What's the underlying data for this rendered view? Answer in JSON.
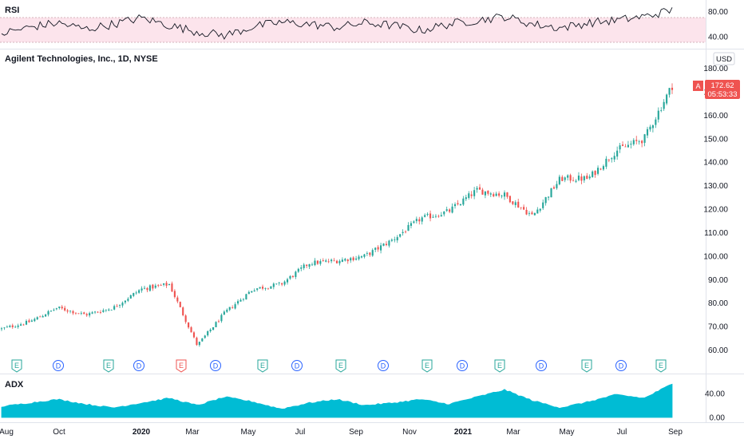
{
  "panes": {
    "rsi": {
      "label": "RSI",
      "ticks": [
        "80.00",
        "40.00"
      ]
    },
    "main": {
      "title": "Agilent Technologies, Inc., 1D, NYSE",
      "currency": "USD",
      "ticks": [
        "180.00",
        "170.00",
        "160.00",
        "150.00",
        "140.00",
        "130.00",
        "120.00",
        "110.00",
        "100.00",
        "90.00",
        "80.00",
        "70.00",
        "60.00"
      ],
      "price_badge": {
        "symbol": "A",
        "price": "172.62",
        "countdown": "05:53:33"
      }
    },
    "adx": {
      "label": "ADX",
      "ticks": [
        "40.00",
        "0.00"
      ]
    }
  },
  "x_axis_labels": [
    "Aug",
    "Oct",
    "2020",
    "Mar",
    "May",
    "Jul",
    "Sep",
    "Nov",
    "2021",
    "Mar",
    "May",
    "Jul",
    "Sep"
  ],
  "events": [
    {
      "type": "E",
      "style": "earnings"
    },
    {
      "type": "D",
      "style": "dividend"
    },
    {
      "type": "E",
      "style": "earnings"
    },
    {
      "type": "D",
      "style": "dividend"
    },
    {
      "type": "E",
      "style": "earnings-miss"
    },
    {
      "type": "D",
      "style": "dividend"
    },
    {
      "type": "E",
      "style": "earnings"
    },
    {
      "type": "D",
      "style": "dividend"
    },
    {
      "type": "E",
      "style": "earnings"
    },
    {
      "type": "D",
      "style": "dividend"
    },
    {
      "type": "E",
      "style": "earnings"
    },
    {
      "type": "D",
      "style": "dividend"
    },
    {
      "type": "E",
      "style": "earnings"
    },
    {
      "type": "D",
      "style": "dividend"
    },
    {
      "type": "E",
      "style": "earnings"
    },
    {
      "type": "D",
      "style": "dividend"
    },
    {
      "type": "E",
      "style": "earnings"
    }
  ],
  "colors": {
    "up": "#26a69a",
    "down": "#ef5350",
    "rsi_band": "#fce4ec",
    "adx_fill": "#00bcd4",
    "earnings": "#26a69a",
    "earnings_miss": "#ef5350",
    "dividend": "#2962ff"
  },
  "chart_data": [
    {
      "type": "candlestick",
      "pane": "main",
      "ylim": [
        55,
        185
      ],
      "x_range": [
        "2019-08",
        "2021-08"
      ],
      "y_scale": "linear",
      "grid": false,
      "last_price": 172.62,
      "close_path": [
        {
          "x": "2019-08",
          "y": 69
        },
        {
          "x": "2019-09",
          "y": 72
        },
        {
          "x": "2019-10",
          "y": 78
        },
        {
          "x": "2019-11",
          "y": 75
        },
        {
          "x": "2019-12",
          "y": 78
        },
        {
          "x": "2020-01",
          "y": 86
        },
        {
          "x": "2020-02",
          "y": 88
        },
        {
          "x": "2020-03",
          "y": 62
        },
        {
          "x": "2020-04",
          "y": 76
        },
        {
          "x": "2020-05",
          "y": 86
        },
        {
          "x": "2020-06",
          "y": 88
        },
        {
          "x": "2020-07",
          "y": 97
        },
        {
          "x": "2020-08",
          "y": 98
        },
        {
          "x": "2020-09",
          "y": 100
        },
        {
          "x": "2020-10",
          "y": 107
        },
        {
          "x": "2020-11",
          "y": 116
        },
        {
          "x": "2020-12",
          "y": 119
        },
        {
          "x": "2021-01",
          "y": 128
        },
        {
          "x": "2021-02",
          "y": 126
        },
        {
          "x": "2021-03",
          "y": 117
        },
        {
          "x": "2021-04",
          "y": 133
        },
        {
          "x": "2021-05",
          "y": 133
        },
        {
          "x": "2021-06",
          "y": 145
        },
        {
          "x": "2021-07",
          "y": 150
        },
        {
          "x": "2021-08",
          "y": 172.62
        }
      ]
    },
    {
      "type": "line",
      "pane": "rsi",
      "ylim": [
        30,
        95
      ],
      "band": [
        30,
        70
      ],
      "values": [
        45,
        55,
        62,
        52,
        60,
        70,
        58,
        48,
        42,
        56,
        63,
        60,
        55,
        62,
        58,
        50,
        60,
        66,
        72,
        60,
        54,
        62,
        66,
        72,
        82
      ]
    },
    {
      "type": "area",
      "pane": "adx",
      "ylim": [
        0,
        60
      ],
      "values": [
        18,
        24,
        30,
        22,
        16,
        24,
        32,
        20,
        34,
        26,
        14,
        24,
        30,
        20,
        24,
        30,
        22,
        34,
        46,
        28,
        16,
        26,
        38,
        32,
        56
      ]
    }
  ]
}
